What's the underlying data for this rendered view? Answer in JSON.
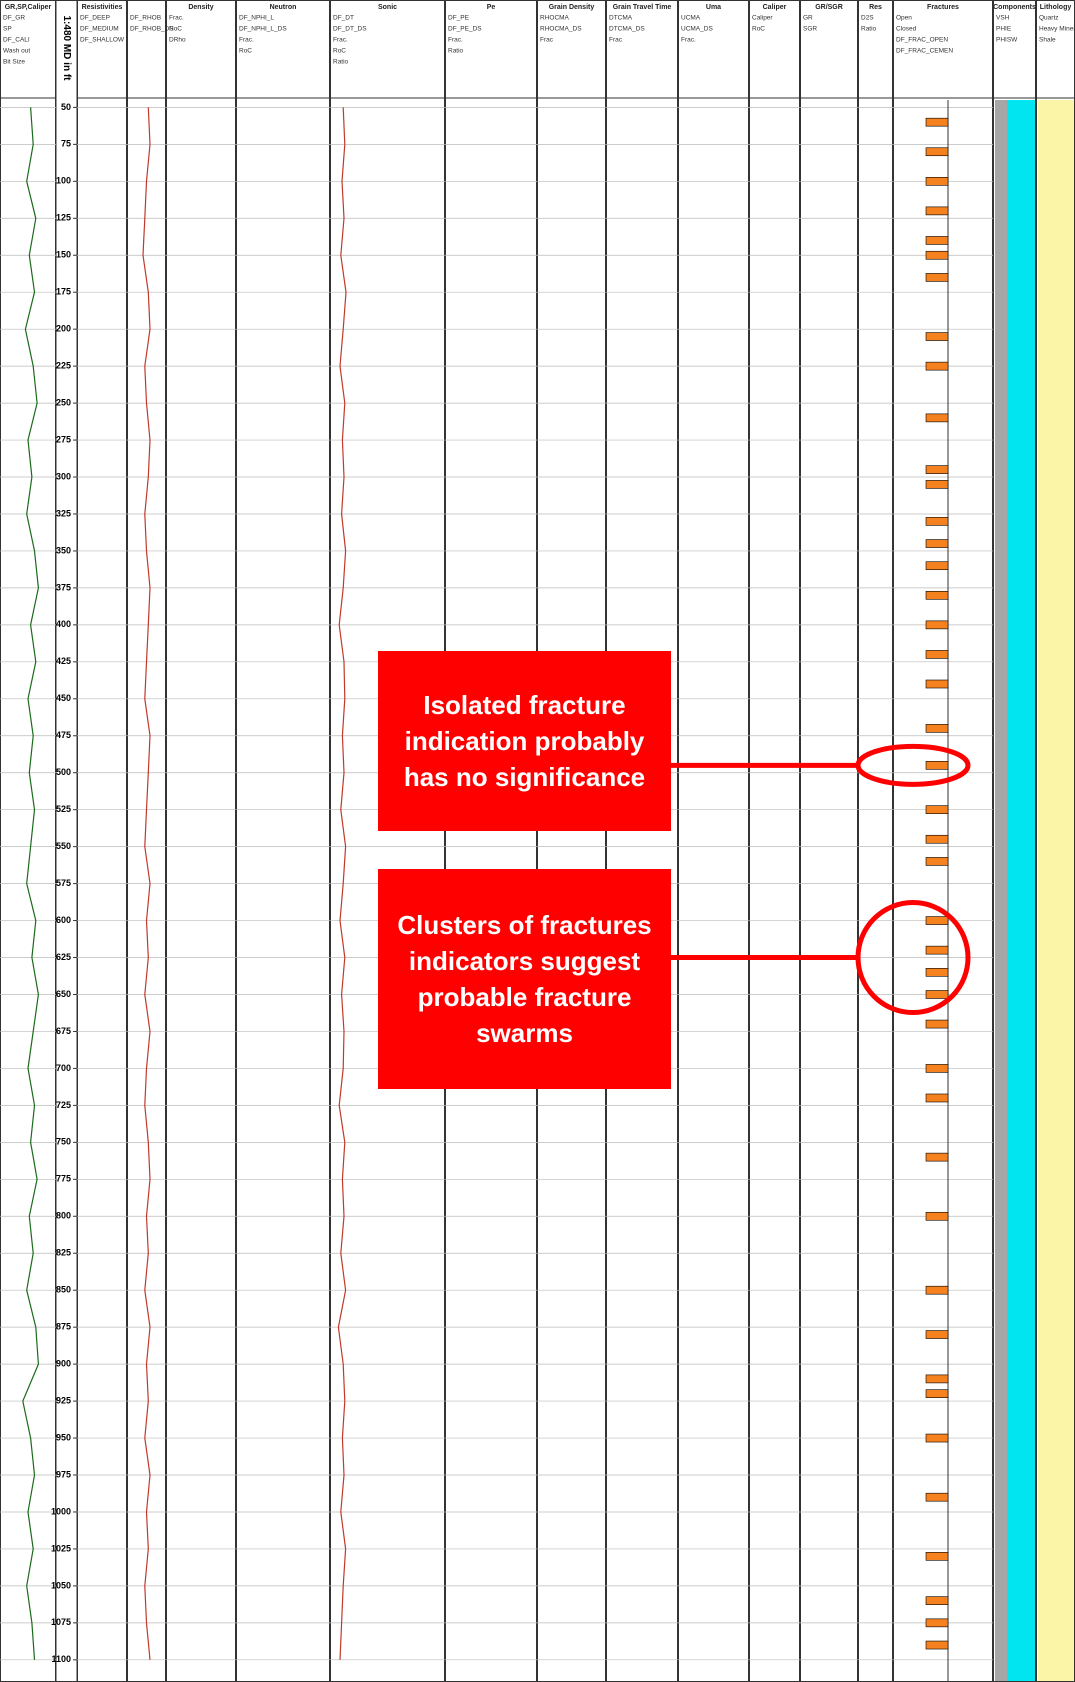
{
  "chart_data": {
    "type": "well-log",
    "depth_label": "1:480 MD in ft",
    "ylim": [
      45,
      1115
    ],
    "yticks": [
      50,
      75,
      100,
      125,
      150,
      175,
      200,
      225,
      250,
      275,
      300,
      325,
      350,
      375,
      400,
      425,
      450,
      475,
      500,
      525,
      550,
      575,
      600,
      625,
      650,
      675,
      700,
      725,
      750,
      775,
      800,
      825,
      850,
      875,
      900,
      925,
      950,
      975,
      1000,
      1025,
      1050,
      1075,
      1100
    ],
    "tracks": [
      {
        "title": "GR,SP,Caliper",
        "labels": [
          "DF_GR",
          "SP",
          "DF_CALI",
          "Wash out",
          "Bit Size"
        ]
      },
      {
        "title": "Resistivities",
        "labels": [
          "DF_DEEP",
          "DF_MEDIUM",
          "DF_SHALLOW"
        ]
      },
      {
        "labels": [
          "DF_RHOB",
          "DF_RHOB_DS"
        ]
      },
      {
        "title": "Density",
        "labels": [
          "Frac.",
          "RoC",
          "DRho"
        ]
      },
      {
        "title": "Neutron",
        "labels": [
          "DF_NPHI_L",
          "DF_NPHI_L_DS",
          "Frac.",
          "RoC"
        ]
      },
      {
        "title": "Sonic",
        "labels": [
          "DF_DT",
          "DF_DT_DS",
          "Frac.",
          "RoC",
          "Ratio"
        ]
      },
      {
        "title": "Pe",
        "labels": [
          "DF_PE",
          "DF_PE_DS",
          "Frac.",
          "Ratio"
        ]
      },
      {
        "title": "Grain Density",
        "labels": [
          "RHOCMA",
          "RHOCMA_DS",
          "Frac"
        ]
      },
      {
        "title": "Grain Travel Time",
        "labels": [
          "DTCMA",
          "DTCMA_DS",
          "Frac"
        ]
      },
      {
        "title": "Uma",
        "labels": [
          "UCMA",
          "UCMA_DS",
          "Frac."
        ]
      },
      {
        "title": "Caliper",
        "labels": [
          "Caliper",
          "RoC"
        ]
      },
      {
        "title": "GR/SGR",
        "labels": [
          "GR",
          "SGR"
        ]
      },
      {
        "title": "Res",
        "labels": [
          "D2S",
          "Ratio"
        ]
      },
      {
        "title": "Fractures",
        "labels": [
          "Open",
          "Closed",
          "DF_FRAC_OPEN",
          "DF_FRAC_CEMEN"
        ]
      },
      {
        "title": "Components",
        "labels": [
          "VSH",
          "PHIE",
          "PHISW"
        ]
      },
      {
        "title": "Lithology",
        "labels": [
          "Quartz",
          "Heavy Minerals",
          "Shale"
        ]
      }
    ],
    "x": [
      50,
      75,
      100,
      125,
      150,
      175,
      200,
      225,
      250,
      275,
      300,
      325,
      350,
      375,
      400,
      425,
      450,
      475,
      500,
      525,
      550,
      575,
      600,
      625,
      650,
      675,
      700,
      725,
      750,
      775,
      800,
      825,
      850,
      875,
      900,
      925,
      950,
      975,
      1000,
      1025,
      1050,
      1075,
      1100
    ],
    "series": [
      {
        "name": "DF_GR",
        "color": "#1a6b1a",
        "track": 0,
        "xlim": [
          0,
          200
        ],
        "values": [
          110,
          120,
          95,
          130,
          105,
          125,
          90,
          120,
          135,
          100,
          115,
          95,
          125,
          140,
          110,
          130,
          100,
          120,
          105,
          125,
          110,
          95,
          130,
          115,
          140,
          120,
          100,
          125,
          110,
          135,
          105,
          120,
          95,
          130,
          140,
          80,
          110,
          125,
          100,
          120,
          95,
          115,
          125
        ]
      },
      {
        "name": "DF_RHOB",
        "color": "#c0392b",
        "track": 2,
        "xlim": [
          2,
          3
        ],
        "values": [
          2.55,
          2.6,
          2.5,
          2.45,
          2.4,
          2.55,
          2.6,
          2.45,
          2.5,
          2.6,
          2.55,
          2.45,
          2.5,
          2.6,
          2.55,
          2.5,
          2.45,
          2.6,
          2.55,
          2.5,
          2.45,
          2.6,
          2.5,
          2.55,
          2.45,
          2.6,
          2.5,
          2.45,
          2.55,
          2.6,
          2.5,
          2.55,
          2.45,
          2.6,
          2.5,
          2.55,
          2.45,
          2.6,
          2.5,
          2.55,
          2.45,
          2.5,
          2.6
        ]
      },
      {
        "name": "DF_DT",
        "color": "#c0392b",
        "track": 5,
        "xlim": [
          140,
          40
        ],
        "values": [
          112,
          108,
          115,
          110,
          118,
          105,
          112,
          120,
          108,
          114,
          110,
          116,
          106,
          112,
          122,
          110,
          108,
          114,
          110,
          118,
          106,
          112,
          120,
          108,
          116,
          110,
          112,
          122,
          108,
          114,
          110,
          118,
          106,
          124,
          112,
          108,
          114,
          110,
          118,
          106,
          112,
          116,
          120
        ]
      }
    ],
    "open_fractures": {
      "name": "DF_FRAC_OPEN",
      "color": "#f5821f",
      "track": 13,
      "values": [
        60,
        80,
        100,
        120,
        140,
        150,
        165,
        205,
        225,
        260,
        295,
        305,
        330,
        345,
        360,
        380,
        400,
        420,
        440,
        470,
        495,
        525,
        545,
        560,
        600,
        620,
        635,
        650,
        670,
        700,
        720,
        760,
        800,
        850,
        880,
        910,
        920,
        950,
        990,
        1030,
        1060,
        1075,
        1090
      ]
    },
    "annotations": [
      {
        "text": "Isolated fracture indication probably has no significance",
        "depth": 495
      },
      {
        "text": "Clusters of fractures indicators suggest probable fracture swarms",
        "depth": 625
      }
    ]
  }
}
